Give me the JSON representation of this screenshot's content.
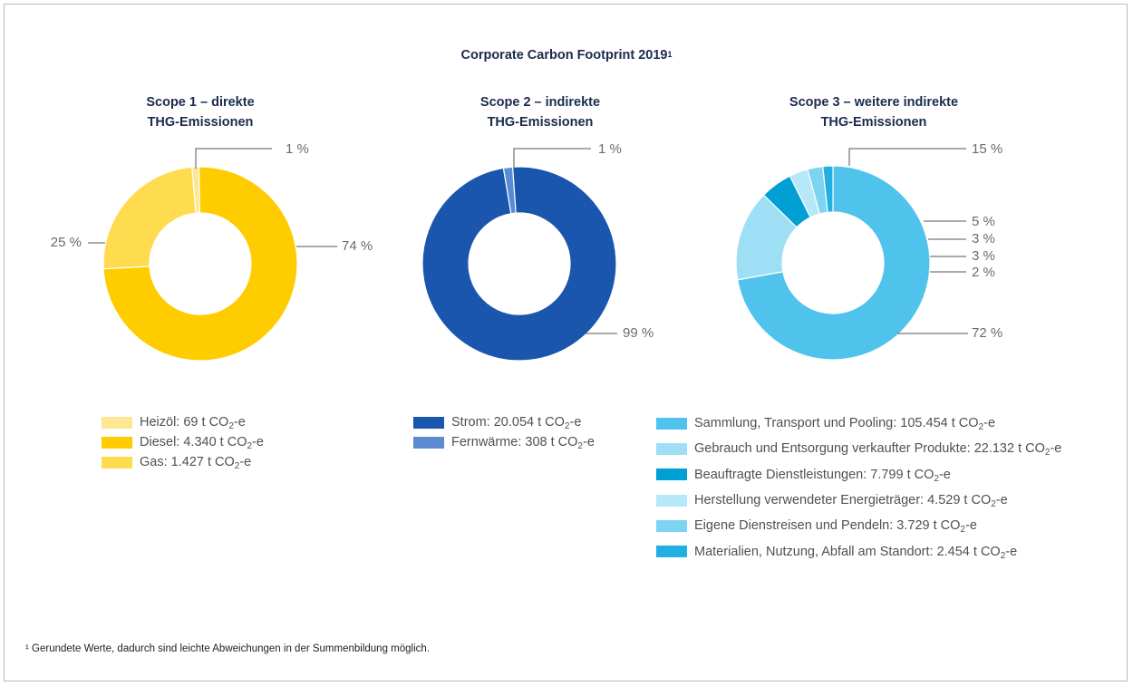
{
  "title": {
    "text": "Corporate Carbon Footprint 2019",
    "sup": "1"
  },
  "footnote": "¹ Gerundete Werte, dadurch sind leichte Abweichungen in der Summenbildung möglich.",
  "chart_data": [
    {
      "type": "pie",
      "title_line1": "Scope 1 – direkte",
      "title_line2": "THG-Emissionen",
      "slices": [
        {
          "label": "Heizöl: 69 t CO",
          "sub": "2",
          "suffix": "-e",
          "value": 69,
          "percent": "1 %",
          "color": "#fde792"
        },
        {
          "label": "Diesel: 4.340 t CO",
          "sub": "2",
          "suffix": "-e",
          "value": 4340,
          "percent": "74 %",
          "color": "#ffcc00"
        },
        {
          "label": "Gas: 1.427 t CO",
          "sub": "2",
          "suffix": "-e",
          "value": 1427,
          "percent": "25 %",
          "color": "#ffdb50"
        }
      ]
    },
    {
      "type": "pie",
      "title_line1": "Scope 2 – indirekte",
      "title_line2": "THG-Emissionen",
      "slices": [
        {
          "label": "Strom: 20.054 t CO",
          "sub": "2",
          "suffix": "-e",
          "value": 20054,
          "percent": "99 %",
          "color": "#1a56ad"
        },
        {
          "label": "Fernwärme: 308 t CO",
          "sub": "2",
          "suffix": "-e",
          "value": 308,
          "percent": "1 %",
          "color": "#5b8bd0"
        }
      ]
    },
    {
      "type": "pie",
      "title_line1": "Scope 3 – weitere indirekte",
      "title_line2": "THG-Emissionen",
      "slices": [
        {
          "label": "Sammlung, Transport und Pooling: 105.454 t CO",
          "sub": "2",
          "suffix": "-e",
          "value": 105454,
          "percent": "72 %",
          "color": "#4fc3ec"
        },
        {
          "label": "Gebrauch und Entsorgung verkaufter Produkte: 22.132 t CO",
          "sub": "2",
          "suffix": "-e",
          "value": 22132,
          "percent": "15 %",
          "color": "#9edff6"
        },
        {
          "label": "Beauftragte Dienstleistungen: 7.799 t CO",
          "sub": "2",
          "suffix": "-e",
          "value": 7799,
          "percent": "5 %",
          "color": "#009fd4"
        },
        {
          "label": "Herstellung verwendeter Energieträger: 4.529 t CO",
          "sub": "2",
          "suffix": "-e",
          "value": 4529,
          "percent": "3 %",
          "color": "#b5e8f9"
        },
        {
          "label": "Eigene Dienstreisen und Pendeln: 3.729 t CO",
          "sub": "2",
          "suffix": "-e",
          "value": 3729,
          "percent": "3 %",
          "color": "#7dd3f2"
        },
        {
          "label": "Materialien, Nutzung, Abfall am Standort: 2.454 t CO",
          "sub": "2",
          "suffix": "-e",
          "value": 2454,
          "percent": "2 %",
          "color": "#22b0e2"
        }
      ]
    }
  ]
}
